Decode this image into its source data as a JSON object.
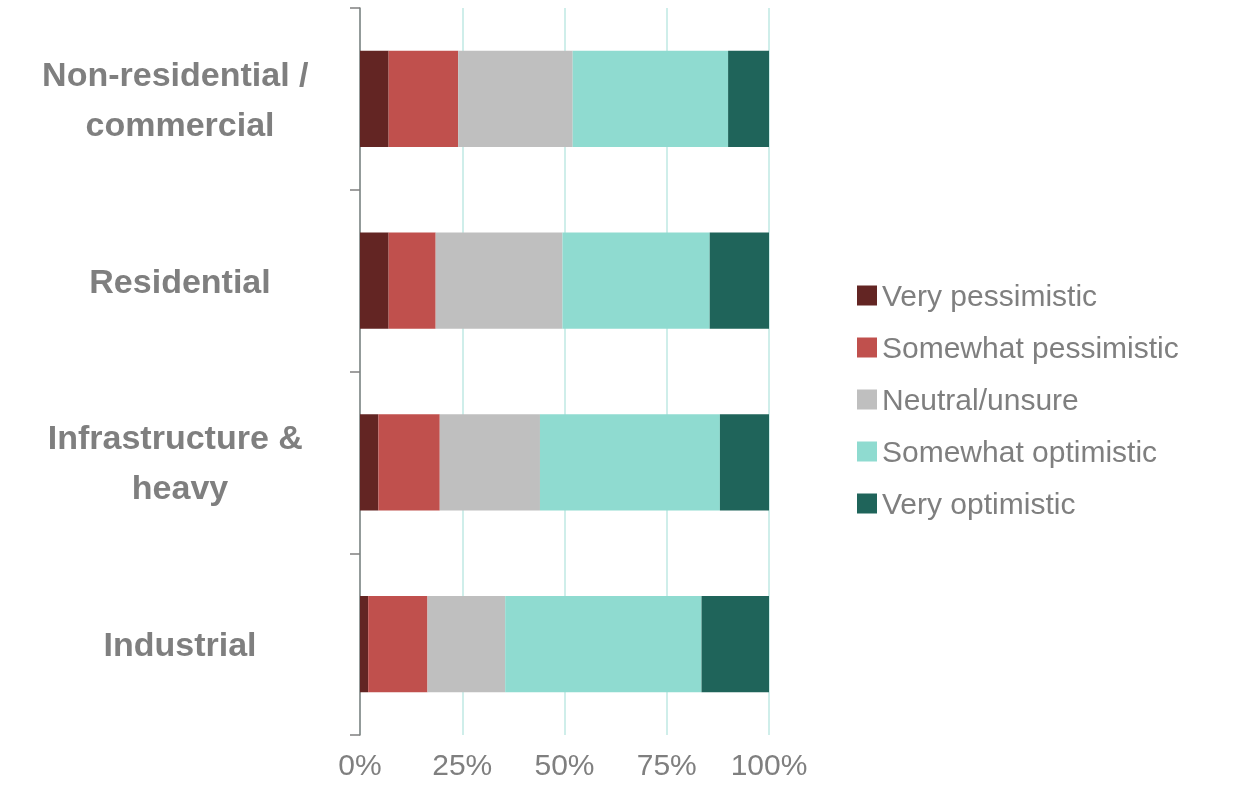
{
  "chart_data": {
    "type": "bar",
    "orientation": "horizontal",
    "stacked": true,
    "categories": [
      "Non-residential / commercial",
      "Residential",
      "Infrastructure & heavy",
      "Industrial"
    ],
    "series": [
      {
        "name": "Very pessimistic",
        "color": "#632523",
        "values": [
          7,
          7,
          4.5,
          2
        ]
      },
      {
        "name": "Somewhat pessimistic",
        "color": "#c0504d",
        "values": [
          17,
          11.5,
          15,
          14.5
        ]
      },
      {
        "name": "Neutral/unsure",
        "color": "#bfbfbf",
        "values": [
          28,
          31,
          24.5,
          19
        ]
      },
      {
        "name": "Somewhat optimistic",
        "color": "#8fdbd0",
        "values": [
          38,
          36,
          44,
          48
        ]
      },
      {
        "name": "Very optimistic",
        "color": "#1f645a",
        "values": [
          10,
          14.5,
          12,
          16.5
        ]
      }
    ],
    "xlim": [
      0,
      100
    ],
    "xticks": [
      {
        "value": 0,
        "label": "0%"
      },
      {
        "value": 25,
        "label": "25%"
      },
      {
        "value": 50,
        "label": "50%"
      },
      {
        "value": 75,
        "label": "75%"
      },
      {
        "value": 100,
        "label": "100%"
      }
    ],
    "grid": "x",
    "legend": "right"
  }
}
